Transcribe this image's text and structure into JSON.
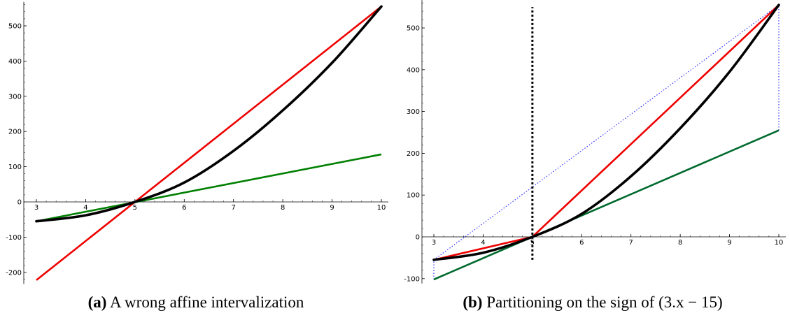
{
  "chart_data": [
    {
      "type": "line",
      "xlim": [
        3,
        10
      ],
      "ylim": [
        -225,
        560
      ],
      "x_ticks": [
        3,
        4,
        5,
        6,
        7,
        8,
        9,
        10
      ],
      "y_ticks": [
        -200,
        -100,
        0,
        100,
        200,
        300,
        400,
        500
      ],
      "grid": false,
      "series": [
        {
          "color": "#000000",
          "function": "quadratic",
          "x": [
            3,
            4,
            5,
            6,
            7,
            8,
            9,
            10
          ],
          "y": [
            -55,
            -38,
            0,
            55,
            145,
            260,
            395,
            555
          ]
        },
        {
          "color": "#ee0000",
          "x": [
            3,
            10
          ],
          "y": [
            -222,
            555
          ]
        },
        {
          "color": "#008000",
          "x": [
            3,
            10
          ],
          "y": [
            -55,
            135
          ]
        }
      ],
      "caption_tag": "(a)",
      "caption_text": "A wrong affine intervalization"
    },
    {
      "type": "line",
      "xlim": [
        3,
        10
      ],
      "ylim": [
        -105,
        560
      ],
      "x_ticks": [
        3,
        4,
        5,
        6,
        7,
        8,
        9,
        10
      ],
      "y_ticks": [
        -100,
        0,
        100,
        200,
        300,
        400,
        500
      ],
      "grid": false,
      "series": [
        {
          "color": "#000000",
          "function": "quadratic",
          "x": [
            3,
            4,
            5,
            6,
            7,
            8,
            9,
            10
          ],
          "y": [
            -55,
            -38,
            0,
            55,
            145,
            260,
            395,
            555
          ]
        },
        {
          "color": "#ee0000",
          "x": [
            3,
            5,
            10
          ],
          "y": [
            -55,
            0,
            555
          ]
        },
        {
          "color": "#006a2e",
          "x": [
            3,
            10
          ],
          "y": [
            -102,
            255
          ]
        },
        {
          "color": "#3333ff",
          "style": "dotted",
          "x": [
            3,
            10
          ],
          "y": [
            -55,
            555
          ]
        },
        {
          "color": "#3333ff",
          "style": "dotted",
          "x": [
            3,
            3
          ],
          "y": [
            -102,
            -55
          ]
        },
        {
          "color": "#3333ff",
          "style": "dotted",
          "x": [
            10,
            10
          ],
          "y": [
            255,
            555
          ]
        },
        {
          "color": "#000000",
          "style": "dashed",
          "x": [
            5,
            5
          ],
          "y": [
            -55,
            550
          ]
        }
      ],
      "caption_tag": "(b)",
      "caption_text": "Partitioning on the sign of (3.x − 15)"
    }
  ]
}
